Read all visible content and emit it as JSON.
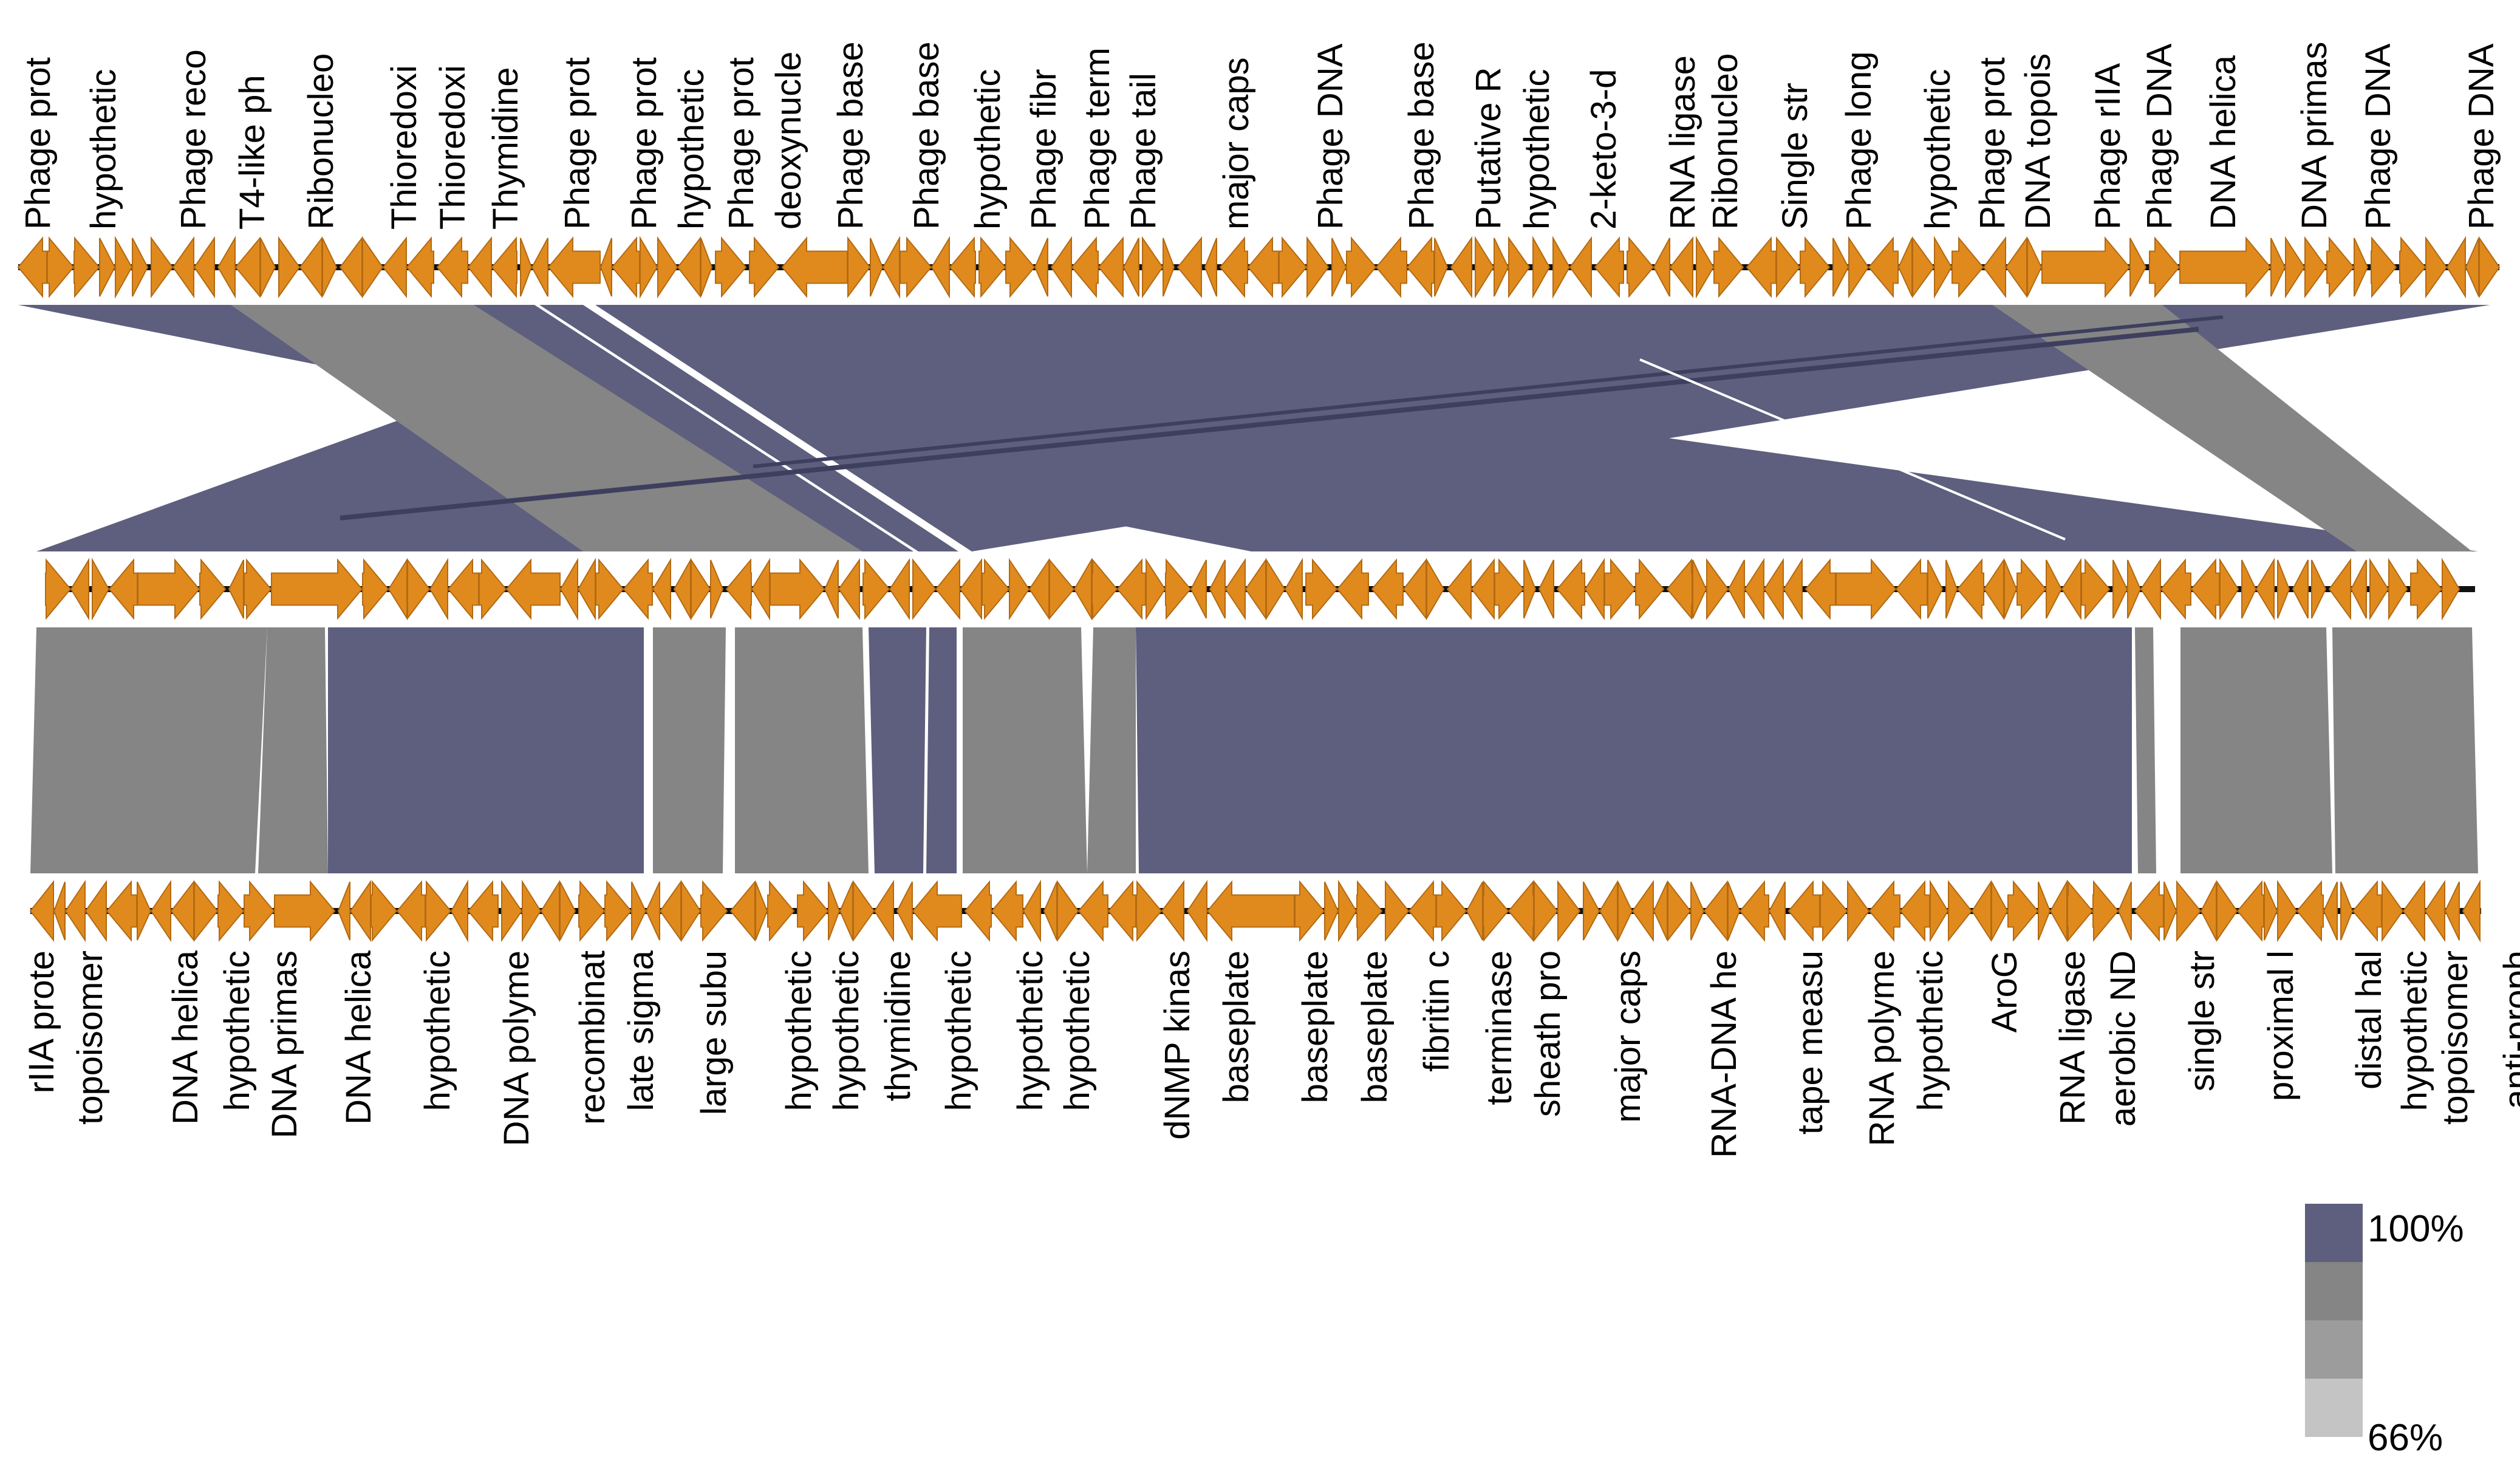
{
  "colors": {
    "gene": "#E08A1E",
    "gene_outline": "#B36A12",
    "backbone": "#111111",
    "identity_high": "#5E5F7E",
    "identity_mid": "#858585",
    "identity_low": "#9C9C9C",
    "identity_lowest": "#C4C4C4",
    "gap": "#FFFFFF"
  },
  "genome_top": {
    "labels": [
      "Phage prot",
      "hypothetic",
      "Phage reco",
      "T4-like ph",
      "Ribonucleo",
      "Thioredoxi",
      "Thioredoxi",
      "Thymidine",
      "Phage prot",
      "Phage prot",
      "hypothetic",
      "Phage prot",
      "deoxynucle",
      "Phage base",
      "Phage base",
      "hypothetic",
      "Phage fibr",
      "Phage term",
      "Phage tail",
      "major caps",
      "Phage DNA",
      "Phage base",
      "Putative R",
      "hypothetic",
      "2-keto-3-d",
      "RNA ligase",
      "Ribonucleo",
      "Single str",
      "Phage long",
      "hypothetic",
      "Phage prot",
      "DNA topois",
      "Phage rIIA",
      "Phage DNA",
      "DNA helica",
      "DNA primas",
      "Phage DNA",
      "Phage DNA"
    ]
  },
  "genome_middle": {
    "labels": []
  },
  "genome_bottom": {
    "labels": [
      "rIIA prote",
      "topoisomer",
      "DNA helica",
      "hypothetic",
      "DNA primas",
      "DNA helica",
      "hypothetic",
      "DNA polyme",
      "recombinat",
      "late sigma",
      "large subu",
      "hypothetic",
      "hypothetic",
      "thymidine",
      "hypothetic",
      "hypothetic",
      "hypothetic",
      "dNMP kinas",
      "baseplate",
      "baseplate",
      "baseplate",
      "fibritin c",
      "terminase",
      "sheath pro",
      "major caps",
      "RNA-DNA he",
      "tape measu",
      "RNA polyme",
      "hypothetic",
      "AroG",
      "RNA ligase",
      "aerobic ND",
      "single str",
      "proximal l",
      "distal hal",
      "hypothetic",
      "topoisomer",
      "anti-proph"
    ]
  },
  "legend": {
    "max_label": "100%",
    "min_label": "66%",
    "scale_colors": [
      "#5E5F7E",
      "#858585",
      "#9C9C9C",
      "#C4C4C4"
    ]
  }
}
